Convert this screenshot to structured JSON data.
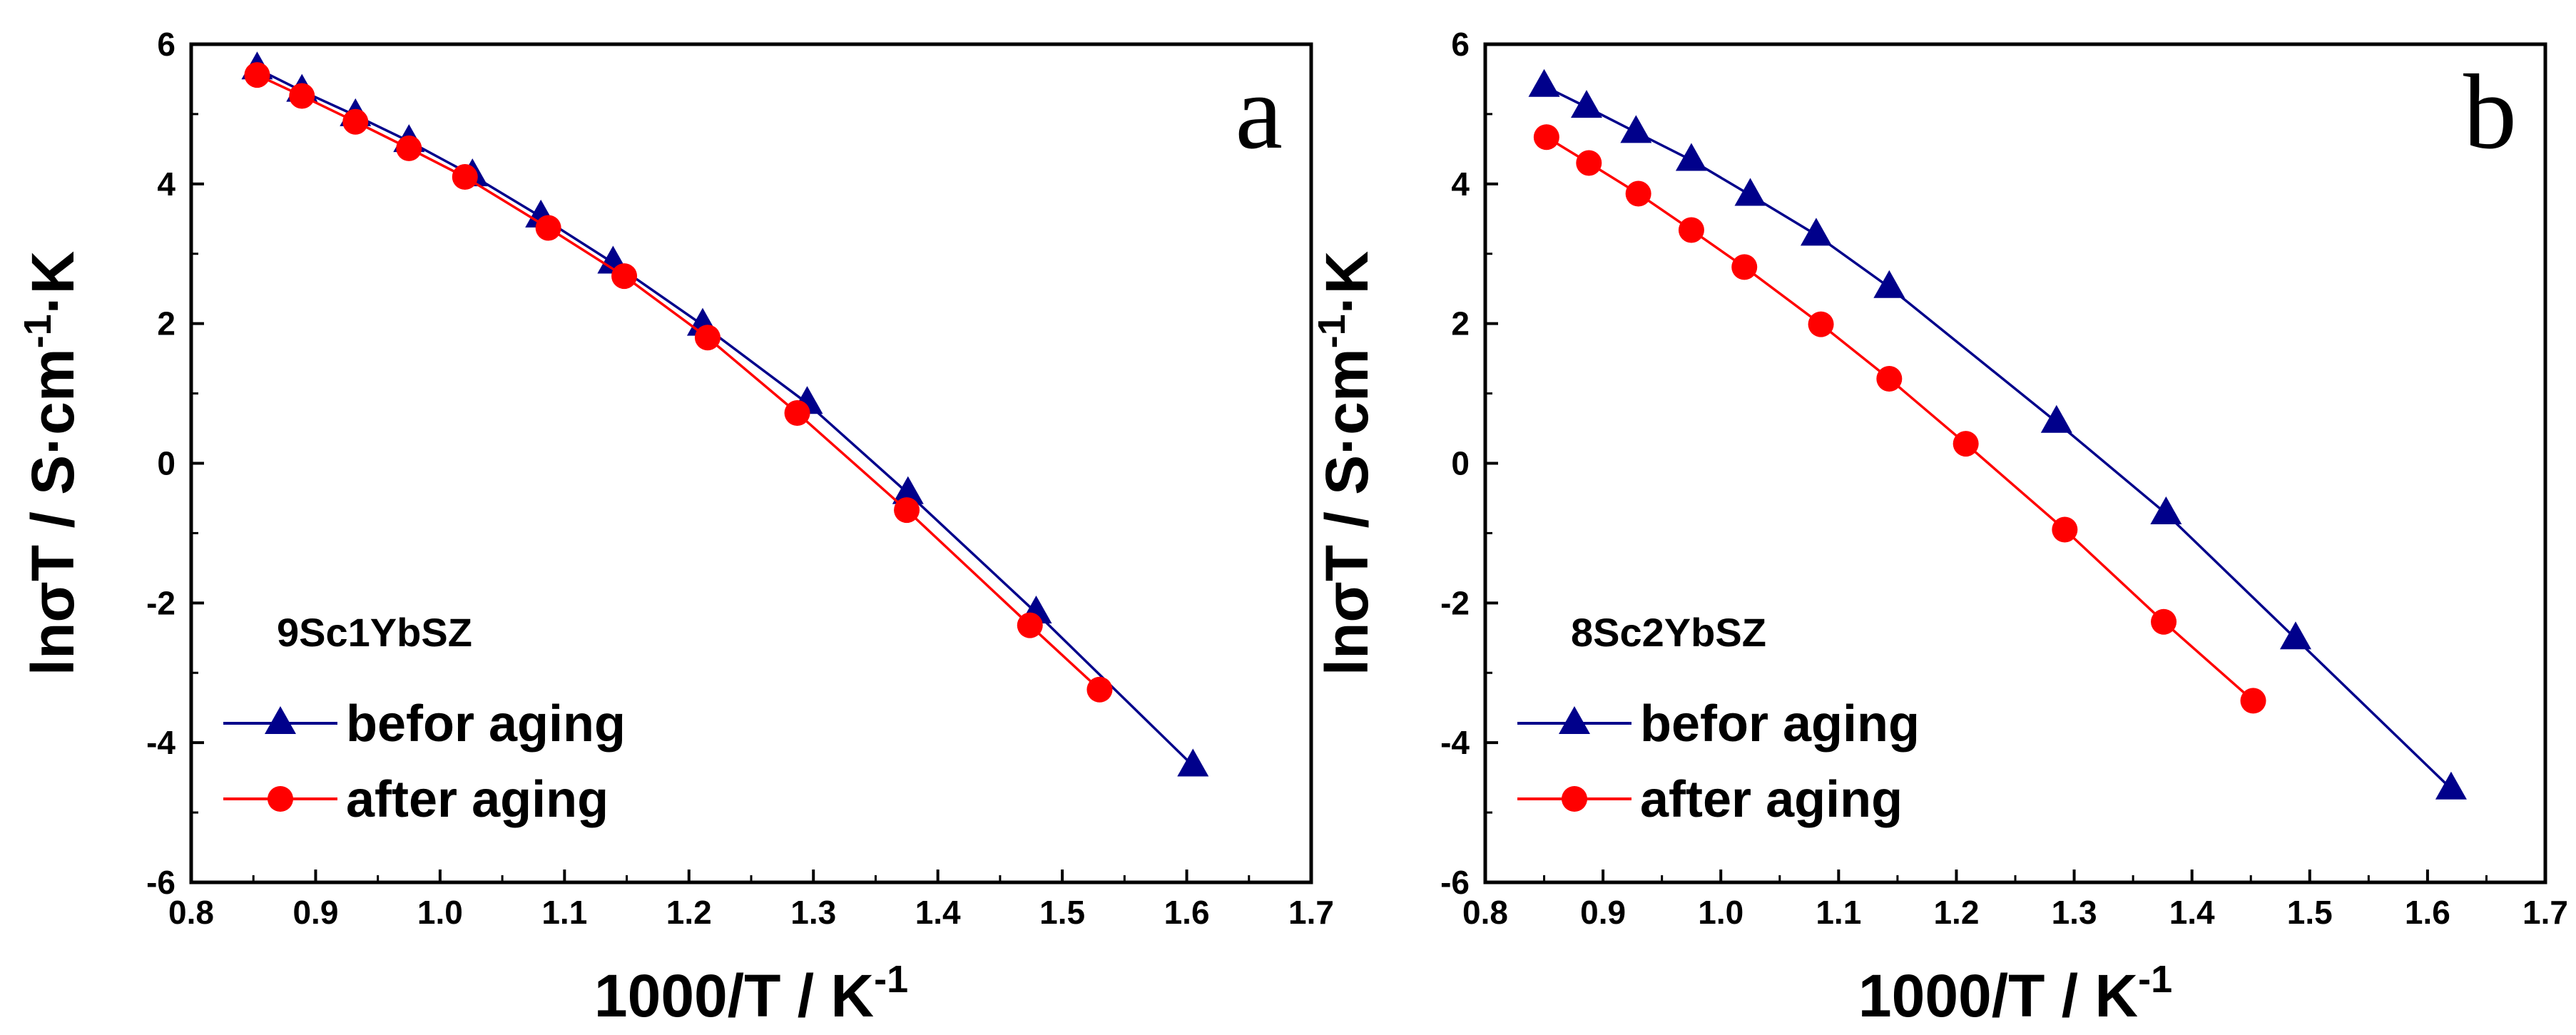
{
  "chart_data": [
    {
      "type": "line",
      "panel_letter": "a",
      "sample": "9Sc1YbSZ",
      "xlabel": "1000/T / K",
      "xlabel_sup": "-1",
      "ylabel_pre": "lnσT / S·cm",
      "ylabel_sup": "-1",
      "ylabel_post": "·K",
      "xlim": [
        0.8,
        1.7
      ],
      "ylim": [
        -6,
        6
      ],
      "xticks": [
        "0.8",
        "0.9",
        "1.0",
        "1.1",
        "1.2",
        "1.3",
        "1.4",
        "1.5",
        "1.6",
        "1.7"
      ],
      "yticks": [
        "-6",
        "-4",
        "-2",
        "0",
        "2",
        "4",
        "6"
      ],
      "legend_position": "bottom-left",
      "series": [
        {
          "name": "befor aging",
          "color": "#00008b",
          "marker": "triangle",
          "x": [
            0.853,
            0.889,
            0.932,
            0.975,
            1.026,
            1.081,
            1.139,
            1.211,
            1.295,
            1.376,
            1.479,
            1.605
          ],
          "y": [
            5.65,
            5.33,
            4.98,
            4.61,
            4.12,
            3.53,
            2.87,
            1.98,
            0.86,
            -0.43,
            -2.14,
            -4.33
          ]
        },
        {
          "name": "after aging",
          "color": "#ff0000",
          "marker": "circle",
          "x": [
            0.853,
            0.889,
            0.932,
            0.975,
            1.02,
            1.087,
            1.148,
            1.215,
            1.287,
            1.375,
            1.474,
            1.53
          ],
          "y": [
            5.56,
            5.26,
            4.89,
            4.51,
            4.1,
            3.37,
            2.68,
            1.8,
            0.72,
            -0.67,
            -2.32,
            -3.24
          ]
        }
      ]
    },
    {
      "type": "line",
      "panel_letter": "b",
      "sample": "8Sc2YbSZ",
      "xlabel": "1000/T / K",
      "xlabel_sup": "-1",
      "ylabel_pre": "lnσT / S·cm",
      "ylabel_sup": "-1",
      "ylabel_post": "·K",
      "xlim": [
        0.8,
        1.7
      ],
      "ylim": [
        -6,
        6
      ],
      "xticks": [
        "0.8",
        "0.9",
        "1.0",
        "1.1",
        "1.2",
        "1.3",
        "1.4",
        "1.5",
        "1.6",
        "1.7"
      ],
      "yticks": [
        "-6",
        "-4",
        "-2",
        "0",
        "2",
        "4",
        "6"
      ],
      "legend_position": "bottom-left",
      "series": [
        {
          "name": "befor aging",
          "color": "#00008b",
          "marker": "triangle",
          "x": [
            0.85,
            0.886,
            0.928,
            0.975,
            1.025,
            1.081,
            1.143,
            1.285,
            1.378,
            1.488,
            1.62
          ],
          "y": [
            5.4,
            5.1,
            4.74,
            4.34,
            3.84,
            3.27,
            2.52,
            0.59,
            -0.72,
            -2.51,
            -4.66
          ]
        },
        {
          "name": "after aging",
          "color": "#ff0000",
          "marker": "circle",
          "x": [
            0.852,
            0.888,
            0.93,
            0.975,
            1.02,
            1.085,
            1.143,
            1.208,
            1.292,
            1.376,
            1.452
          ],
          "y": [
            4.67,
            4.3,
            3.86,
            3.34,
            2.81,
            1.99,
            1.21,
            0.28,
            -0.95,
            -2.27,
            -3.4
          ]
        }
      ]
    }
  ]
}
